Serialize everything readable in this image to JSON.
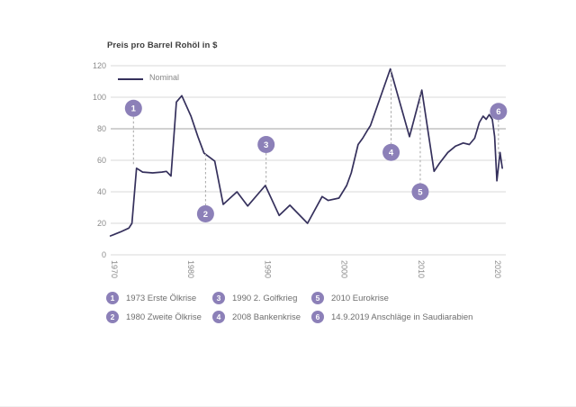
{
  "chart": {
    "title": "Preis pro Barrel Rohöl in $",
    "legend_label": "Nominal"
  },
  "colors": {
    "line": "#35305c",
    "annotation_circle": "#8c80b8",
    "annotation_number": "#ffffff",
    "grid": "#d9d9d9",
    "grid_emphasis": "#a3a3a3",
    "dash": "#a6a6a6",
    "axis_text": "#8c8c8c",
    "title_text": "#3d3d3d",
    "legend_text": "#858585",
    "note_text": "#6e6e6e"
  },
  "chart_data": {
    "type": "line",
    "title": "Preis pro Barrel Rohöl in $",
    "ylabel": "Preis pro Barrel Rohöl in $",
    "unit": "$",
    "x_ticks": [
      1970,
      1980,
      1990,
      2000,
      2010,
      2020
    ],
    "y_ticks": [
      0,
      20,
      40,
      60,
      80,
      100,
      120
    ],
    "xlim": [
      1969.5,
      2021
    ],
    "ylim": [
      0,
      120
    ],
    "grid": "horizontal",
    "highlight_gridline": 80,
    "legend_position": "top-left",
    "series": [
      {
        "name": "Nominal",
        "points": [
          [
            1969.5,
            12
          ],
          [
            1970.8,
            14.5
          ],
          [
            1971.9,
            17
          ],
          [
            1972.3,
            20
          ],
          [
            1972.9,
            55
          ],
          [
            1973.7,
            52.5
          ],
          [
            1975.0,
            52
          ],
          [
            1976.2,
            52.5
          ],
          [
            1976.8,
            53
          ],
          [
            1977.4,
            50
          ],
          [
            1978.1,
            97
          ],
          [
            1978.8,
            101
          ],
          [
            1980.0,
            88
          ],
          [
            1980.9,
            75
          ],
          [
            1981.7,
            64.5
          ],
          [
            1983.1,
            59.5
          ],
          [
            1984.2,
            32
          ],
          [
            1986.0,
            40
          ],
          [
            1987.4,
            31
          ],
          [
            1989.7,
            44
          ],
          [
            1991.5,
            25
          ],
          [
            1992.9,
            31.5
          ],
          [
            1995.2,
            20
          ],
          [
            1997.1,
            37
          ],
          [
            1997.9,
            34.5
          ],
          [
            1999.3,
            36
          ],
          [
            2000.3,
            44
          ],
          [
            2000.9,
            52
          ],
          [
            2001.8,
            70
          ],
          [
            2002.4,
            74
          ],
          [
            2003.0,
            79
          ],
          [
            2003.4,
            82
          ],
          [
            2006.0,
            118
          ],
          [
            2008.5,
            75
          ],
          [
            2010.1,
            104.5
          ],
          [
            2011.7,
            53
          ],
          [
            2012.4,
            58
          ],
          [
            2013.5,
            65
          ],
          [
            2014.5,
            69
          ],
          [
            2015.5,
            71
          ],
          [
            2016.3,
            70
          ],
          [
            2017.0,
            74
          ],
          [
            2017.6,
            84
          ],
          [
            2018.1,
            88
          ],
          [
            2018.5,
            86
          ],
          [
            2018.9,
            89
          ],
          [
            2019.3,
            86
          ],
          [
            2019.6,
            75
          ],
          [
            2019.9,
            47
          ],
          [
            2020.3,
            65
          ],
          [
            2020.6,
            55
          ]
        ]
      }
    ],
    "annotations": [
      {
        "id": "1",
        "x": 1972.5,
        "circle_value": 93,
        "attach_value": 57,
        "label": "1973 Erste Ölkrise"
      },
      {
        "id": "2",
        "x": 1981.9,
        "circle_value": 26,
        "attach_value": 64,
        "label": "1980 Zweite Ölkrise"
      },
      {
        "id": "3",
        "x": 1989.8,
        "circle_value": 70,
        "attach_value": 44,
        "label": "1990 2. Golfkrieg"
      },
      {
        "id": "4",
        "x": 2006.1,
        "circle_value": 65,
        "attach_value": 117,
        "label": "2008 Bankenkrise"
      },
      {
        "id": "5",
        "x": 2009.9,
        "circle_value": 40,
        "attach_value": 103,
        "label": "2010 Eurokrise"
      },
      {
        "id": "6",
        "x": 2020.1,
        "circle_value": 91,
        "attach_value": 64,
        "label": "14.9.2019 Anschläge in Saudiarabien"
      }
    ]
  }
}
